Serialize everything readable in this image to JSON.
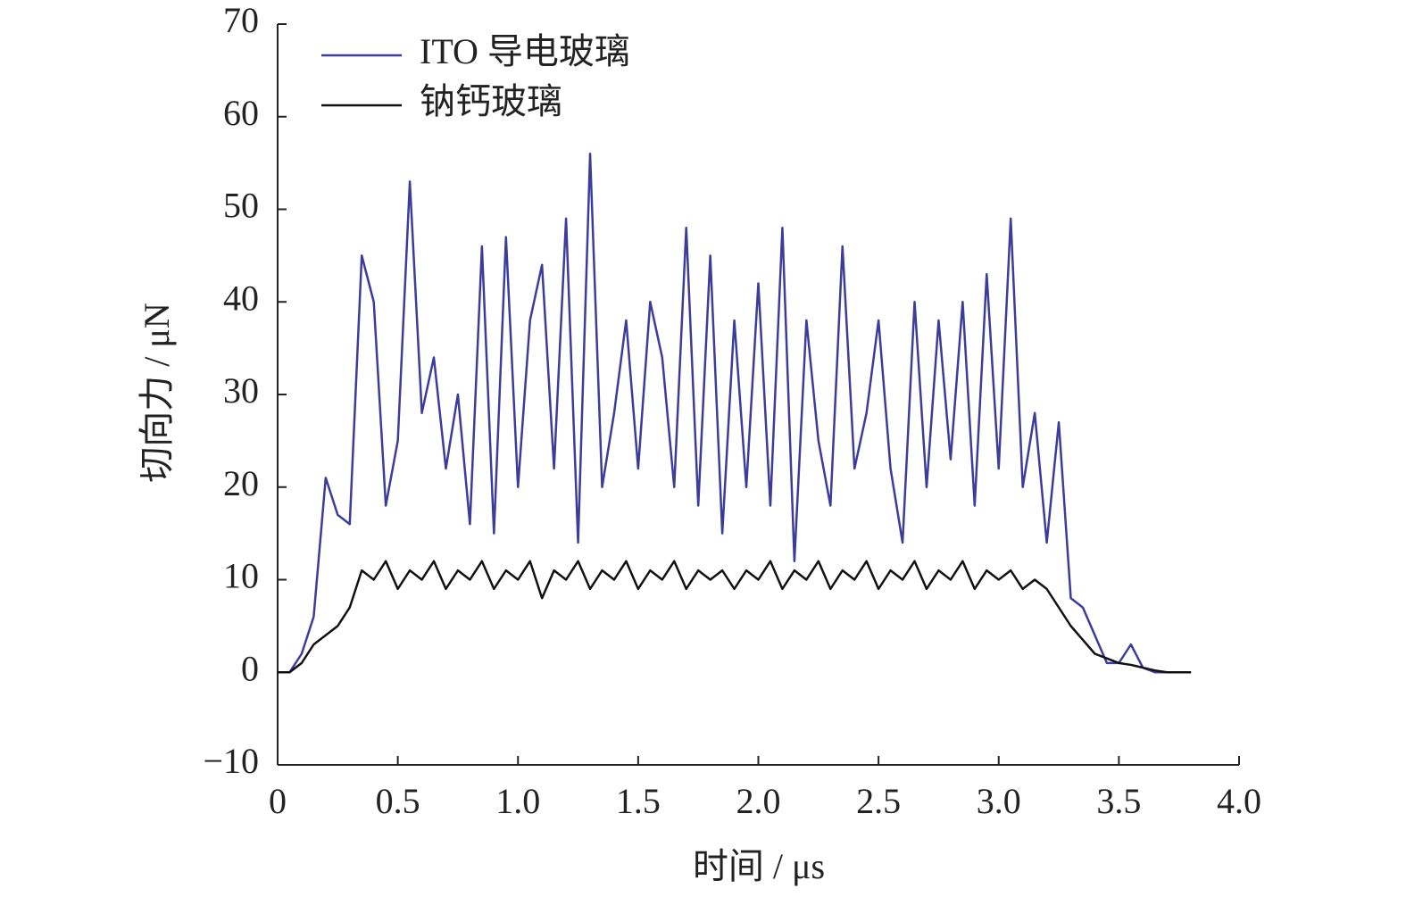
{
  "chart_data": {
    "type": "line",
    "xlabel": "时间 / μs",
    "ylabel": "切向力 / μN",
    "x": [
      0,
      0.05,
      0.1,
      0.15,
      0.2,
      0.25,
      0.3,
      0.35,
      0.4,
      0.45,
      0.5,
      0.55,
      0.6,
      0.65,
      0.7,
      0.75,
      0.8,
      0.85,
      0.9,
      0.95,
      1,
      1.05,
      1.1,
      1.15,
      1.2,
      1.25,
      1.3,
      1.35,
      1.4,
      1.45,
      1.5,
      1.55,
      1.6,
      1.65,
      1.7,
      1.75,
      1.8,
      1.85,
      1.9,
      1.95,
      2,
      2.05,
      2.1,
      2.15,
      2.2,
      2.25,
      2.3,
      2.35,
      2.4,
      2.45,
      2.5,
      2.55,
      2.6,
      2.65,
      2.7,
      2.75,
      2.8,
      2.85,
      2.9,
      2.95,
      3,
      3.05,
      3.1,
      3.15,
      3.2,
      3.25,
      3.3,
      3.35,
      3.4,
      3.45,
      3.5,
      3.55,
      3.6,
      3.65,
      3.7,
      3.75,
      3.8
    ],
    "series": [
      {
        "name": "ITO 导电玻璃",
        "color": "#3c3c9c",
        "values": [
          0,
          0,
          2,
          6,
          21,
          17,
          16,
          45,
          40,
          18,
          25,
          53,
          28,
          34,
          22,
          30,
          16,
          46,
          15,
          47,
          20,
          38,
          44,
          22,
          49,
          14,
          56,
          20,
          28,
          38,
          22,
          40,
          34,
          20,
          48,
          18,
          45,
          15,
          38,
          20,
          42,
          18,
          48,
          12,
          38,
          25,
          18,
          46,
          22,
          28,
          38,
          22,
          14,
          40,
          20,
          38,
          23,
          40,
          18,
          43,
          22,
          49,
          20,
          28,
          14,
          27,
          8,
          7,
          4,
          1,
          1,
          3,
          0.5,
          0,
          0,
          0,
          0
        ]
      },
      {
        "name": "钠钙玻璃",
        "color": "#111111",
        "values": [
          0,
          0,
          1,
          3,
          4,
          5,
          7,
          11,
          10,
          12,
          9,
          11,
          10,
          12,
          9,
          11,
          10,
          12,
          9,
          11,
          10,
          12,
          8,
          11,
          10,
          12,
          9,
          11,
          10,
          12,
          9,
          11,
          10,
          12,
          9,
          11,
          10,
          11,
          9,
          11,
          10,
          12,
          9,
          11,
          10,
          12,
          9,
          11,
          10,
          12,
          9,
          11,
          10,
          12,
          9,
          11,
          10,
          12,
          9,
          11,
          10,
          11,
          9,
          10,
          9,
          7,
          5,
          3.5,
          2,
          1.5,
          1,
          0.8,
          0.5,
          0.2,
          0,
          0,
          0
        ]
      }
    ],
    "xlim": [
      0,
      4
    ],
    "ylim": [
      -10,
      70
    ],
    "xticks": [
      0,
      0.5,
      {
        "value": 1,
        "label": "1.0"
      },
      1.5,
      {
        "value": 2,
        "label": "2.0"
      },
      2.5,
      {
        "value": 3,
        "label": "3.0"
      },
      3.5,
      {
        "value": 4,
        "label": "4.0"
      }
    ],
    "yticks": [
      {
        "value": -10,
        "label": "−10"
      },
      0,
      10,
      20,
      30,
      40,
      50,
      60,
      70
    ],
    "legend": "upper left",
    "grid": false
  }
}
